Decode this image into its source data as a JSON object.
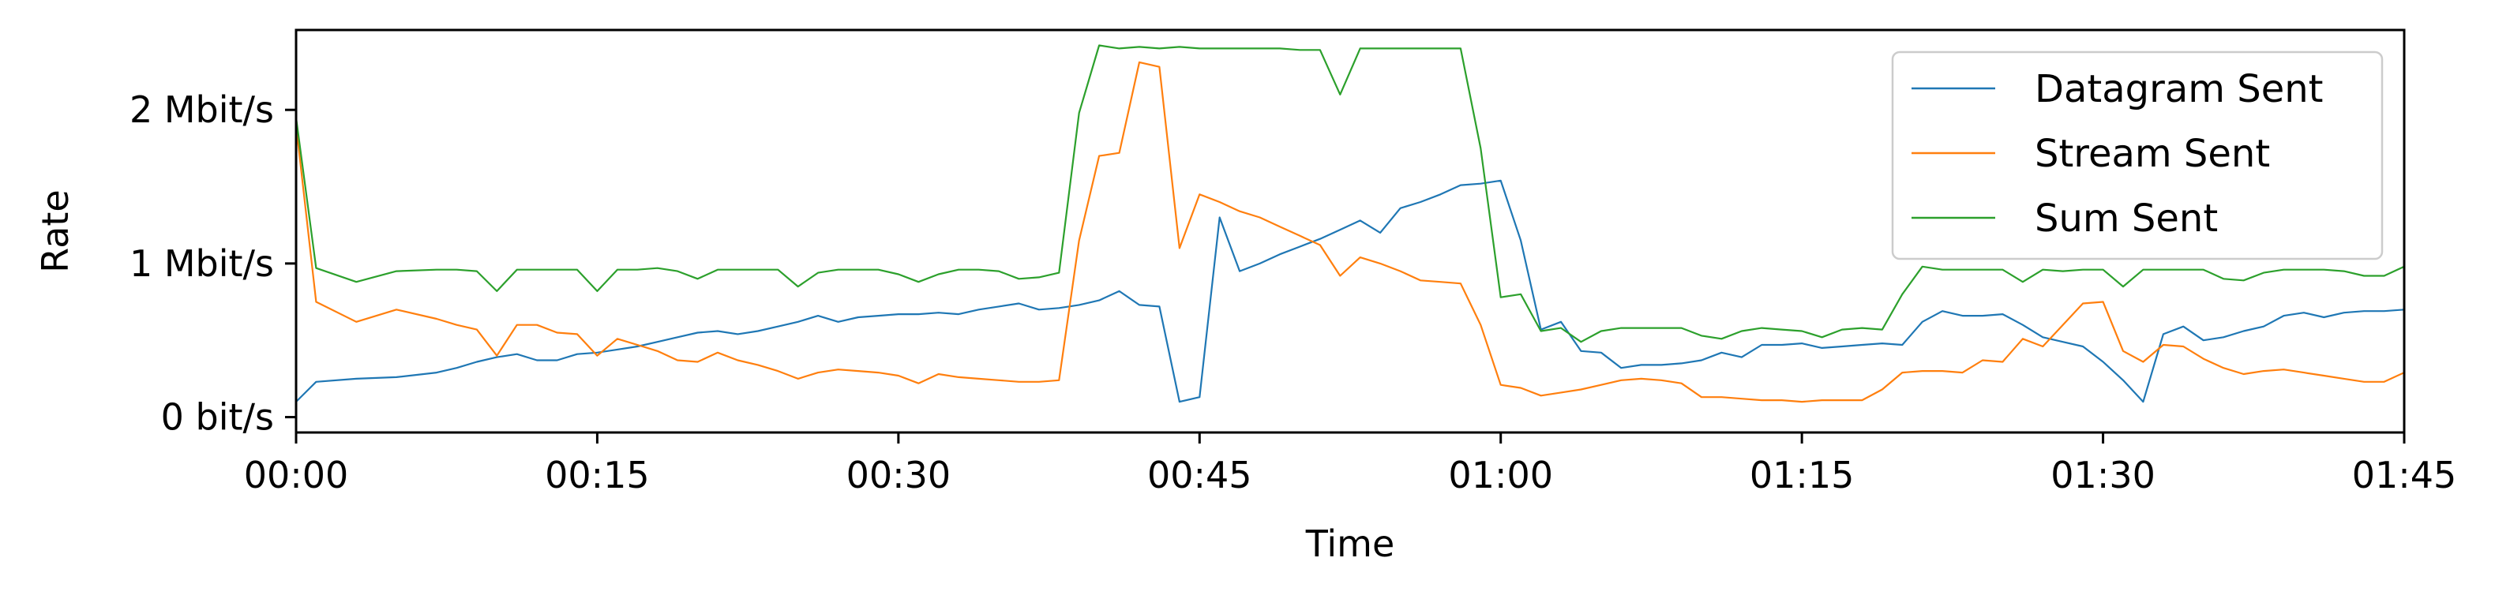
{
  "chart_data": {
    "type": "line",
    "xlabel": "Time",
    "ylabel": "Rate",
    "x_range_seconds": [
      0,
      6300
    ],
    "xlim": [
      "00:00",
      "01:45"
    ],
    "ylim_bits_per_s": [
      -100000,
      2520000
    ],
    "x_ticks": [
      {
        "label": "00:00",
        "seconds": 0
      },
      {
        "label": "00:15",
        "seconds": 900
      },
      {
        "label": "00:30",
        "seconds": 1800
      },
      {
        "label": "00:45",
        "seconds": 2700
      },
      {
        "label": "01:00",
        "seconds": 3600
      },
      {
        "label": "01:15",
        "seconds": 4500
      },
      {
        "label": "01:30",
        "seconds": 5400
      },
      {
        "label": "01:45",
        "seconds": 6300
      }
    ],
    "y_ticks": [
      {
        "label": "0 bit/s",
        "value": 0
      },
      {
        "label": "1 Mbit/s",
        "value": 1000000
      },
      {
        "label": "2 Mbit/s",
        "value": 2000000
      }
    ],
    "legend": {
      "location": "upper right"
    },
    "grid": false,
    "series": [
      {
        "name": "Datagram Sent",
        "color": "#1f77b4",
        "points_x_seconds": [
          0,
          60,
          180,
          300,
          420,
          480,
          540,
          600,
          660,
          720,
          780,
          840,
          900,
          960,
          1020,
          1080,
          1140,
          1200,
          1260,
          1320,
          1380,
          1440,
          1500,
          1560,
          1620,
          1680,
          1740,
          1800,
          1860,
          1920,
          1980,
          2040,
          2100,
          2160,
          2220,
          2280,
          2340,
          2400,
          2460,
          2520,
          2580,
          2640,
          2700,
          2760,
          2820,
          2880,
          2940,
          3000,
          3060,
          3120,
          3180,
          3240,
          3300,
          3360,
          3420,
          3480,
          3540,
          3600,
          3660,
          3720,
          3780,
          3840,
          3900,
          3960,
          4020,
          4080,
          4140,
          4200,
          4260,
          4320,
          4380,
          4440,
          4500,
          4560,
          4620,
          4680,
          4740,
          4800,
          4860,
          4920,
          4980,
          5040,
          5100,
          5160,
          5220,
          5280,
          5340,
          5400,
          5460,
          5520,
          5580,
          5640,
          5700,
          5760,
          5820,
          5880,
          5940,
          6000,
          6060,
          6120,
          6180,
          6240,
          6300
        ],
        "values_bits_per_s": [
          100000,
          230000,
          250000,
          260000,
          290000,
          320000,
          360000,
          390000,
          410000,
          370000,
          370000,
          410000,
          420000,
          440000,
          460000,
          490000,
          520000,
          550000,
          560000,
          540000,
          560000,
          590000,
          620000,
          660000,
          620000,
          650000,
          660000,
          670000,
          670000,
          680000,
          670000,
          700000,
          720000,
          740000,
          700000,
          710000,
          730000,
          760000,
          820000,
          730000,
          720000,
          100000,
          130000,
          1300000,
          950000,
          1000000,
          1060000,
          1110000,
          1160000,
          1220000,
          1280000,
          1200000,
          1360000,
          1400000,
          1450000,
          1510000,
          1520000,
          1540000,
          1150000,
          570000,
          620000,
          430000,
          420000,
          320000,
          340000,
          340000,
          350000,
          370000,
          420000,
          390000,
          470000,
          470000,
          480000,
          450000,
          460000,
          470000,
          480000,
          470000,
          620000,
          690000,
          660000,
          660000,
          670000,
          600000,
          520000,
          490000,
          460000,
          360000,
          240000,
          100000,
          540000,
          590000,
          500000,
          520000,
          560000,
          590000,
          660000,
          680000,
          650000,
          680000,
          690000,
          690000,
          700000,
          750000,
          690000
        ]
      },
      {
        "name": "Stream Sent",
        "color": "#ff7f0e",
        "points_x_seconds": [
          0,
          60,
          180,
          300,
          420,
          480,
          540,
          600,
          660,
          720,
          780,
          840,
          900,
          960,
          1020,
          1080,
          1140,
          1200,
          1260,
          1320,
          1380,
          1440,
          1500,
          1560,
          1620,
          1680,
          1740,
          1800,
          1860,
          1920,
          1980,
          2040,
          2100,
          2160,
          2220,
          2280,
          2340,
          2400,
          2460,
          2520,
          2580,
          2640,
          2700,
          2760,
          2820,
          2880,
          2940,
          3000,
          3060,
          3120,
          3180,
          3240,
          3300,
          3360,
          3420,
          3480,
          3540,
          3600,
          3660,
          3720,
          3780,
          3840,
          3900,
          3960,
          4020,
          4080,
          4140,
          4200,
          4260,
          4320,
          4380,
          4440,
          4500,
          4560,
          4620,
          4680,
          4740,
          4800,
          4860,
          4920,
          4980,
          5040,
          5100,
          5160,
          5220,
          5280,
          5340,
          5400,
          5460,
          5520,
          5580,
          5640,
          5700,
          5760,
          5820,
          5880,
          5940,
          6000,
          6060,
          6120,
          6180,
          6240,
          6300
        ],
        "values_bits_per_s": [
          1900000,
          750000,
          620000,
          700000,
          640000,
          600000,
          570000,
          400000,
          600000,
          600000,
          550000,
          540000,
          400000,
          510000,
          470000,
          430000,
          370000,
          360000,
          420000,
          370000,
          340000,
          300000,
          250000,
          290000,
          310000,
          300000,
          290000,
          270000,
          220000,
          280000,
          260000,
          250000,
          240000,
          230000,
          230000,
          240000,
          1150000,
          1700000,
          1720000,
          2310000,
          2280000,
          1100000,
          1450000,
          1400000,
          1340000,
          1300000,
          1240000,
          1180000,
          1120000,
          920000,
          1040000,
          1000000,
          950000,
          890000,
          880000,
          870000,
          600000,
          210000,
          190000,
          140000,
          160000,
          180000,
          210000,
          240000,
          250000,
          240000,
          220000,
          130000,
          130000,
          120000,
          110000,
          110000,
          100000,
          110000,
          110000,
          110000,
          180000,
          290000,
          300000,
          300000,
          290000,
          370000,
          360000,
          510000,
          460000,
          600000,
          740000,
          750000,
          430000,
          360000,
          470000,
          460000,
          380000,
          320000,
          280000,
          300000,
          310000,
          290000,
          270000,
          250000,
          230000,
          230000,
          290000
        ]
      },
      {
        "name": "Sum Sent",
        "color": "#2ca02c",
        "points_x_seconds": [
          0,
          60,
          180,
          300,
          420,
          480,
          540,
          600,
          660,
          720,
          780,
          840,
          900,
          960,
          1020,
          1080,
          1140,
          1200,
          1260,
          1320,
          1380,
          1440,
          1500,
          1560,
          1620,
          1680,
          1740,
          1800,
          1860,
          1920,
          1980,
          2040,
          2100,
          2160,
          2220,
          2280,
          2340,
          2400,
          2460,
          2520,
          2580,
          2640,
          2700,
          2760,
          2820,
          2880,
          2940,
          3000,
          3060,
          3120,
          3180,
          3240,
          3300,
          3360,
          3420,
          3480,
          3540,
          3600,
          3660,
          3720,
          3780,
          3840,
          3900,
          3960,
          4020,
          4080,
          4140,
          4200,
          4260,
          4320,
          4380,
          4440,
          4500,
          4560,
          4620,
          4680,
          4740,
          4800,
          4860,
          4920,
          4980,
          5040,
          5100,
          5160,
          5220,
          5280,
          5340,
          5400,
          5460,
          5520,
          5580,
          5640,
          5700,
          5760,
          5820,
          5880,
          5940,
          6000,
          6060,
          6120,
          6180,
          6240,
          6300
        ],
        "values_bits_per_s": [
          1950000,
          970000,
          880000,
          950000,
          960000,
          960000,
          950000,
          820000,
          960000,
          960000,
          960000,
          960000,
          820000,
          960000,
          960000,
          970000,
          950000,
          900000,
          960000,
          960000,
          960000,
          960000,
          850000,
          940000,
          960000,
          960000,
          960000,
          930000,
          880000,
          930000,
          960000,
          960000,
          950000,
          900000,
          910000,
          940000,
          1980000,
          2420000,
          2400000,
          2410000,
          2400000,
          2410000,
          2400000,
          2400000,
          2400000,
          2400000,
          2400000,
          2390000,
          2390000,
          2100000,
          2400000,
          2400000,
          2400000,
          2400000,
          2400000,
          2400000,
          1750000,
          780000,
          800000,
          560000,
          580000,
          490000,
          560000,
          580000,
          580000,
          580000,
          580000,
          530000,
          510000,
          560000,
          580000,
          570000,
          560000,
          520000,
          570000,
          580000,
          570000,
          800000,
          980000,
          960000,
          960000,
          960000,
          960000,
          880000,
          960000,
          950000,
          960000,
          960000,
          850000,
          960000,
          960000,
          960000,
          960000,
          900000,
          890000,
          940000,
          960000,
          960000,
          960000,
          950000,
          920000,
          920000,
          980000,
          960000
        ]
      }
    ]
  }
}
